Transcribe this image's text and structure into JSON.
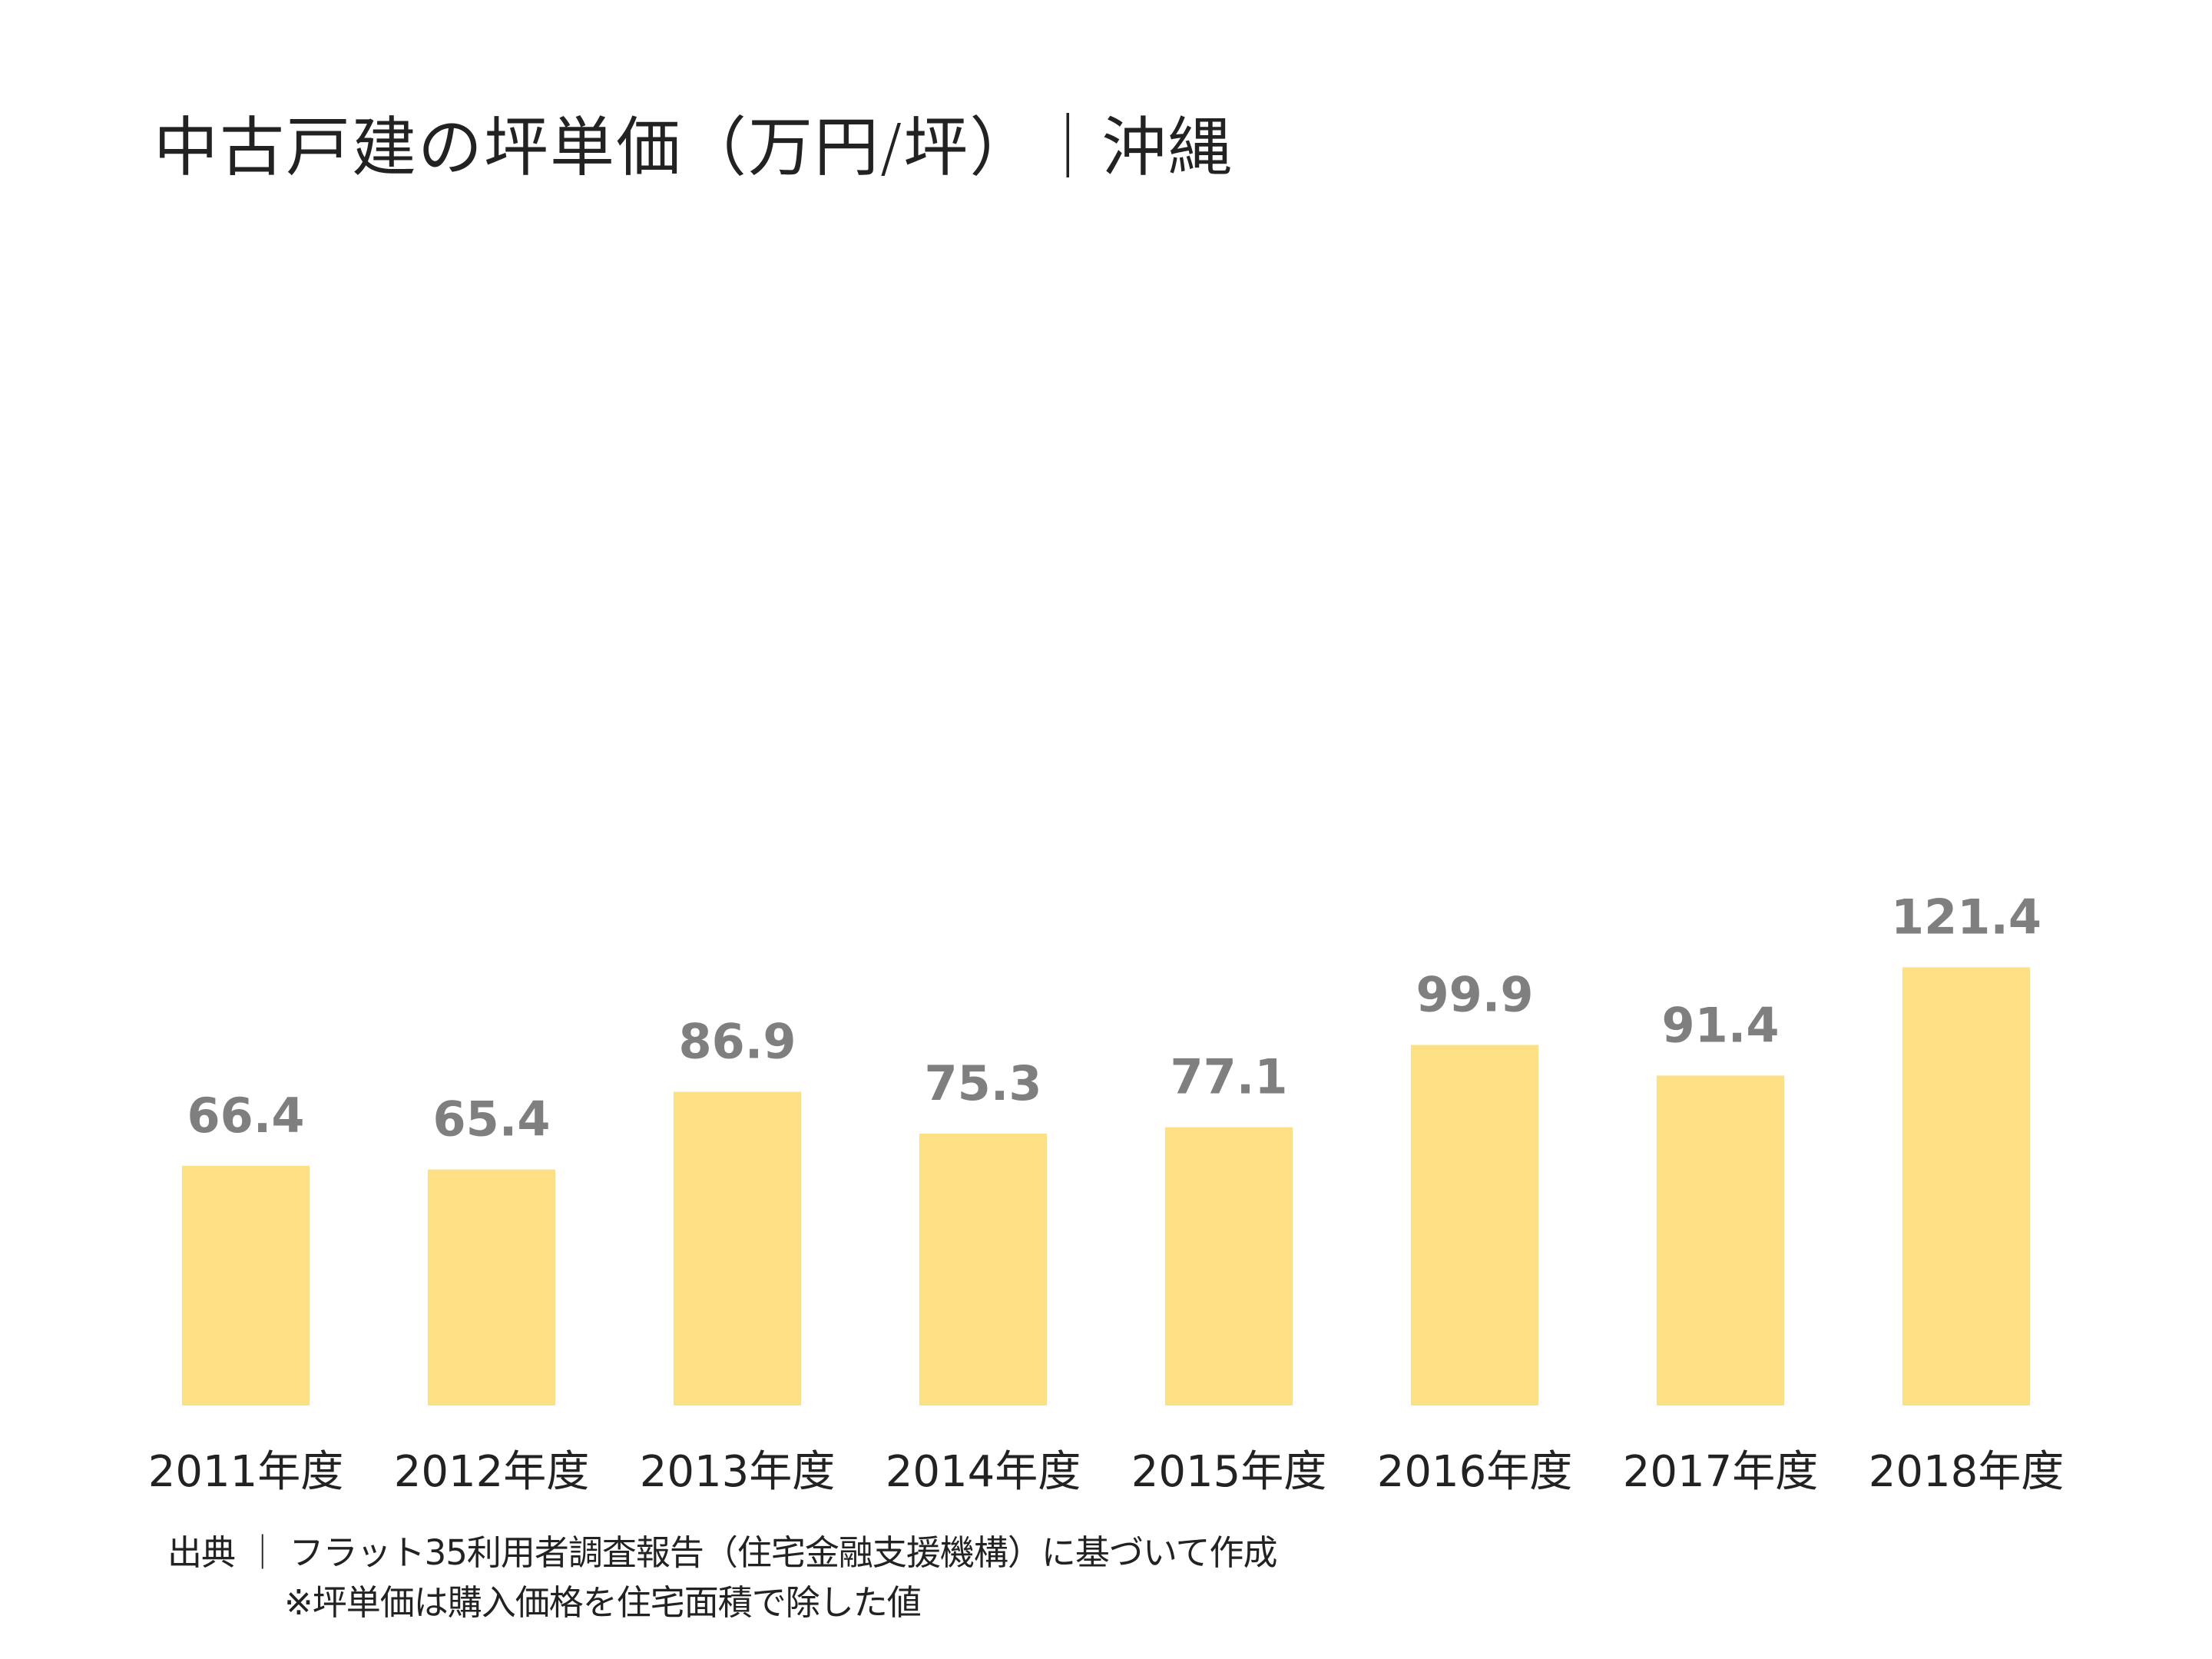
{
  "chart_data": {
    "type": "bar",
    "title": "中古戸建の坪単価（万円/坪）｜沖縄",
    "categories": [
      "2011年度",
      "2012年度",
      "2013年度",
      "2014年度",
      "2015年度",
      "2016年度",
      "2017年度",
      "2018年度"
    ],
    "values": [
      66.4,
      65.4,
      86.9,
      75.3,
      77.1,
      99.9,
      91.4,
      121.4
    ],
    "data_labels": [
      "66.4",
      "65.4",
      "86.9",
      "75.3",
      "77.1",
      "99.9",
      "91.4",
      "121.4"
    ],
    "ylim": [
      0,
      140
    ],
    "grid": false,
    "bar_color": "#fde083",
    "data_label_color": "#7f7f7f",
    "tick_label_color": "#222222"
  },
  "source": {
    "line1": "出典 ｜ フラット35利用者調査報告（住宅金融支援機構）に基づいて作成",
    "line2": "※坪単価は購入価格を住宅面積で除した値"
  }
}
